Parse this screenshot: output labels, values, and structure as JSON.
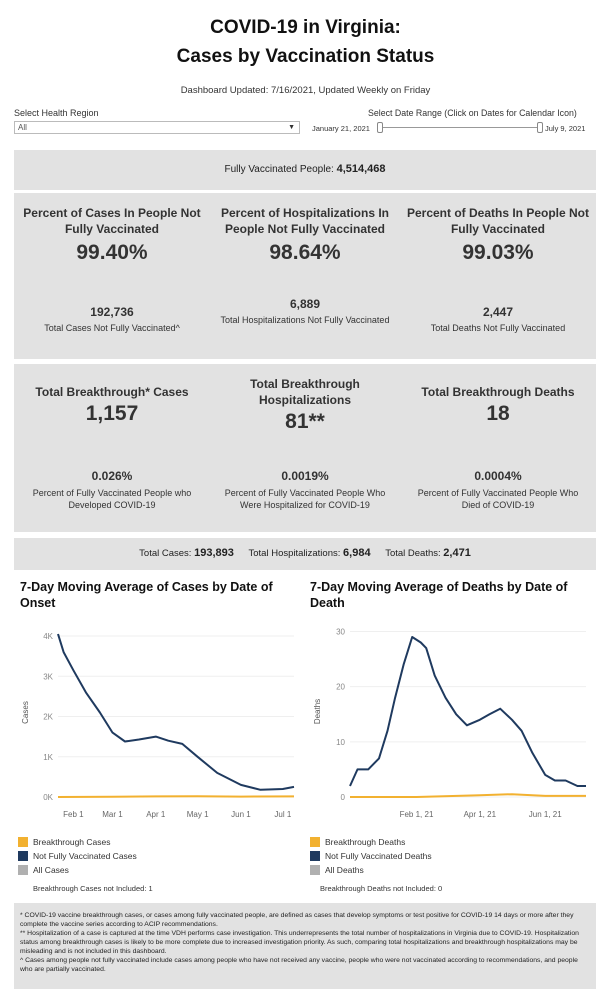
{
  "header": {
    "title_line1": "COVID-19 in Virginia:",
    "title_line2": "Cases by Vaccination Status",
    "updated": "Dashboard Updated: 7/16/2021,  Updated Weekly on Friday"
  },
  "filters": {
    "region_label": "Select Health Region",
    "region_value": "All",
    "date_label": "Select Date Range (Click on Dates for Calendar Icon)",
    "date_start": "January 21, 2021",
    "date_end": "July 9, 2021"
  },
  "fully_vaccinated": {
    "label": "Fully Vaccinated People:",
    "value": "4,514,468"
  },
  "not_vaccinated": {
    "cases": {
      "heading": "Percent of Cases In People Not Fully Vaccinated",
      "percent": "99.40%",
      "count": "192,736",
      "count_label": "Total Cases Not Fully Vaccinated^"
    },
    "hosp": {
      "heading": "Percent of Hospitalizations In People Not Fully Vaccinated",
      "percent": "98.64%",
      "count": "6,889",
      "count_label": "Total Hospitalizations Not Fully Vaccinated"
    },
    "deaths": {
      "heading": "Percent of Deaths In People Not Fully Vaccinated",
      "percent": "99.03%",
      "count": "2,447",
      "count_label": "Total Deaths Not Fully Vaccinated"
    }
  },
  "breakthrough": {
    "cases": {
      "heading": "Total Breakthrough* Cases",
      "value": "1,157",
      "percent": "0.026%",
      "percent_label": "Percent of Fully Vaccinated People who Developed COVID-19"
    },
    "hosp": {
      "heading": "Total Breakthrough Hospitalizations",
      "value": "81**",
      "percent": "0.0019%",
      "percent_label": "Percent of Fully Vaccinated People Who Were Hospitalized for COVID-19"
    },
    "deaths": {
      "heading": "Total Breakthrough Deaths",
      "value": "18",
      "percent": "0.0004%",
      "percent_label": "Percent of Fully Vaccinated People Who Died of COVID-19"
    }
  },
  "totals": {
    "cases_label": "Total Cases:",
    "cases": "193,893",
    "hosp_label": "Total Hospitalizations:",
    "hosp": "6,984",
    "deaths_label": "Total Deaths:",
    "deaths": "2,471"
  },
  "colors": {
    "breakthrough": "#f2b130",
    "not_vaccinated": "#1f3a5f",
    "all": "#b0b0b0",
    "panel": "#e2e2e2"
  },
  "chart_data": [
    {
      "type": "line",
      "title": "7-Day Moving Average of Cases by Date of Onset",
      "ylabel": "Cases",
      "xlabel": "",
      "ylim": [
        0,
        4200
      ],
      "yticks": [
        0,
        1000,
        2000,
        3000,
        4000
      ],
      "ytick_labels": [
        "0K",
        "1K",
        "2K",
        "3K",
        "4K"
      ],
      "xticks": [
        "2021-02-01",
        "2021-03-01",
        "2021-04-01",
        "2021-05-01",
        "2021-06-01",
        "2021-07-01"
      ],
      "xtick_labels": [
        "Feb 1",
        "Mar 1",
        "Apr 1",
        "May 1",
        "Jun 1",
        "Jul 1"
      ],
      "xlim": [
        "2021-01-21",
        "2021-07-09"
      ],
      "series": [
        {
          "name": "Not Fully Vaccinated Cases",
          "color": "#1f3a5f",
          "x": [
            "2021-01-21",
            "2021-01-25",
            "2021-02-01",
            "2021-02-10",
            "2021-02-20",
            "2021-03-01",
            "2021-03-10",
            "2021-03-20",
            "2021-04-01",
            "2021-04-10",
            "2021-04-20",
            "2021-05-01",
            "2021-05-15",
            "2021-06-01",
            "2021-06-15",
            "2021-07-01",
            "2021-07-09"
          ],
          "y": [
            4050,
            3600,
            3150,
            2600,
            2100,
            1600,
            1380,
            1430,
            1500,
            1400,
            1320,
            1000,
            600,
            300,
            180,
            200,
            250
          ]
        },
        {
          "name": "Breakthrough Cases",
          "color": "#f2b130",
          "x": [
            "2021-01-21",
            "2021-03-01",
            "2021-04-01",
            "2021-05-01",
            "2021-06-01",
            "2021-07-09"
          ],
          "y": [
            0,
            5,
            15,
            20,
            10,
            15
          ]
        }
      ],
      "legend": [
        "Breakthrough Cases",
        "Not Fully Vaccinated Cases",
        "All Cases"
      ],
      "note": "Breakthrough Cases not Included: 1"
    },
    {
      "type": "line",
      "title": "7-Day Moving Average of Deaths by Date of Death",
      "ylabel": "Deaths",
      "xlabel": "",
      "ylim": [
        0,
        31
      ],
      "yticks": [
        0,
        10,
        20,
        30
      ],
      "ytick_labels": [
        "0",
        "10",
        "20",
        "30"
      ],
      "xticks": [
        "2021-02-01",
        "2021-04-01",
        "2021-06-01"
      ],
      "xtick_labels": [
        "Feb 1, 21",
        "Apr 1, 21",
        "Jun 1, 21"
      ],
      "xlim": [
        "2020-12-01",
        "2021-07-09"
      ],
      "series": [
        {
          "name": "Not Fully Vaccinated Deaths",
          "color": "#1f3a5f",
          "x": [
            "2020-12-01",
            "2020-12-08",
            "2020-12-18",
            "2020-12-28",
            "2021-01-05",
            "2021-01-12",
            "2021-01-20",
            "2021-01-28",
            "2021-02-05",
            "2021-02-10",
            "2021-02-18",
            "2021-02-28",
            "2021-03-10",
            "2021-03-20",
            "2021-04-01",
            "2021-04-10",
            "2021-04-20",
            "2021-05-01",
            "2021-05-10",
            "2021-05-20",
            "2021-06-01",
            "2021-06-10",
            "2021-06-20",
            "2021-07-01",
            "2021-07-09"
          ],
          "y": [
            2,
            5,
            5,
            7,
            12,
            18,
            24,
            29,
            28,
            27,
            22,
            18,
            15,
            13,
            14,
            15,
            16,
            14,
            12,
            8,
            4,
            3,
            3,
            2,
            2
          ]
        },
        {
          "name": "Breakthrough Deaths",
          "color": "#f2b130",
          "x": [
            "2020-12-01",
            "2021-02-01",
            "2021-04-01",
            "2021-05-01",
            "2021-06-01",
            "2021-07-09"
          ],
          "y": [
            0,
            0,
            0.3,
            0.5,
            0.2,
            0.2
          ]
        }
      ],
      "legend": [
        "Breakthrough Deaths",
        "Not Fully Vaccinated Deaths",
        "All Deaths"
      ],
      "note": "Breakthrough Deaths not Included: 0"
    }
  ],
  "footnotes": [
    "* COVID-19 vaccine breakthrough cases, or cases among fully vaccinated people, are defined as cases that develop symptoms or test positive for COVID-19 14 days or more after they complete the vaccine series according to ACIP recommendations.",
    "** Hospitalization of a case is captured at the time VDH performs case investigation. This underrepresents the total number of hospitalizations in Virginia due to COVID-19. Hospitalization status among breakthrough cases is likely to be more complete due to increased investigation priority. As such, comparing total hospitalizations and breakthrough hospitalizations may be misleading and is not included in this dashboard.",
    "^ Cases among people not fully vaccinated include cases among people who have not received any vaccine, people who were not vaccinated according to recommendations, and people who are partially vaccinated."
  ]
}
